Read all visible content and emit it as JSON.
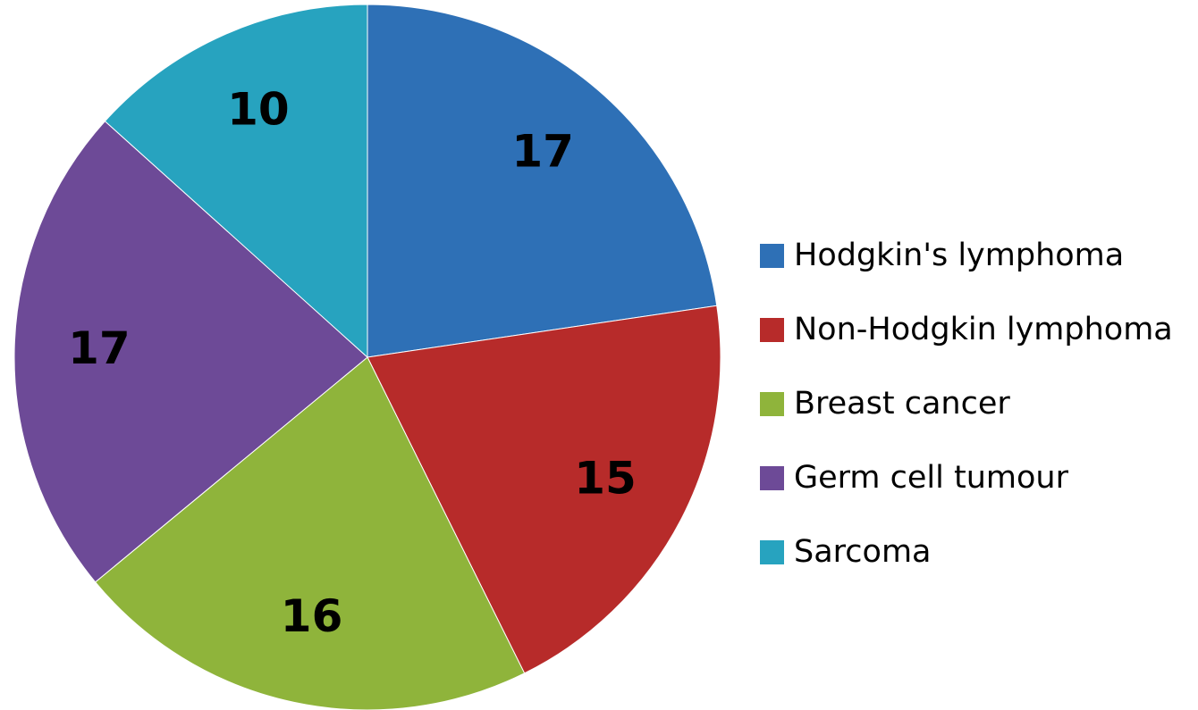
{
  "chart_data": {
    "type": "pie",
    "categories": [
      "Hodgkin's lymphoma",
      "Non-Hodgkin lymphoma",
      "Breast cancer",
      "Germ cell tumour",
      "Sarcoma"
    ],
    "values": [
      17,
      15,
      16,
      17,
      10
    ],
    "colors": [
      "#2e70b6",
      "#b72b2a",
      "#8fb43b",
      "#6d4a97",
      "#27a3bf"
    ],
    "legend": "right"
  }
}
